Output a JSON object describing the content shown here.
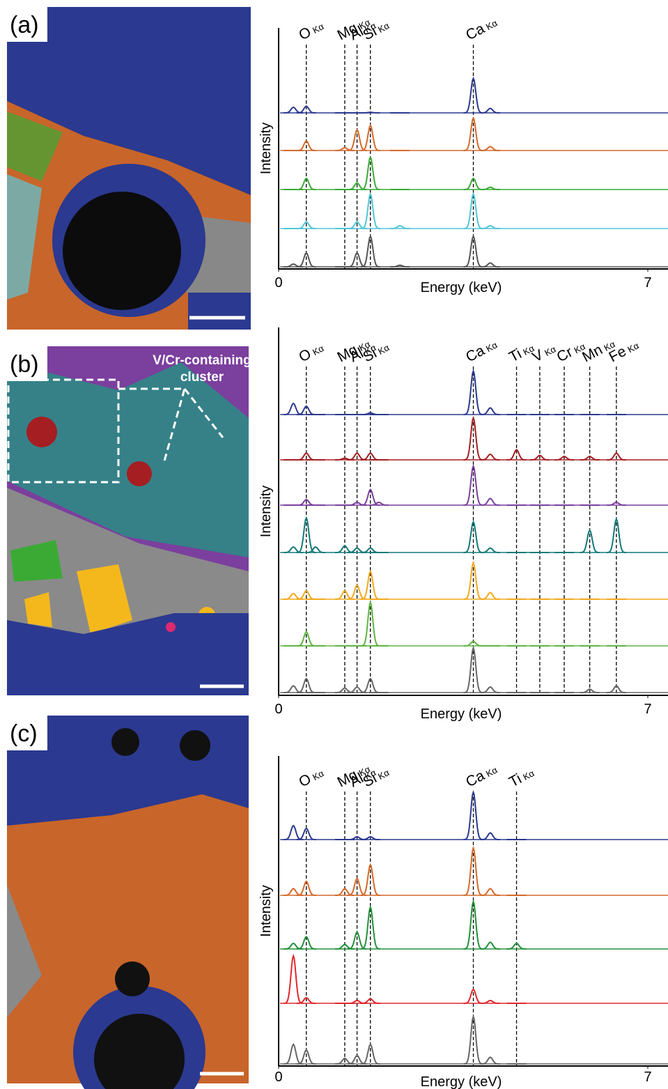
{
  "panel_labels": [
    "(a)",
    "(b)",
    "(c)"
  ],
  "annotation": [
    "V/Cr-containing",
    "cluster"
  ],
  "chart_data": [
    {
      "type": "line",
      "xlabel": "Energy (keV)",
      "ylabel": "Intensity",
      "xlim": [
        0,
        7
      ],
      "xticks": [
        0,
        7
      ],
      "ylim": [
        0,
        100
      ],
      "lines": [
        {
          "element": "O",
          "transition": "Kα",
          "x": 0.525
        },
        {
          "element": "Mg",
          "transition": "Kα",
          "x": 1.254
        },
        {
          "element": "Al",
          "transition": "Kα",
          "x": 1.487
        },
        {
          "element": "Si",
          "transition": "Kα",
          "x": 1.74
        },
        {
          "element": "Ca",
          "transition": "Kα",
          "x": 3.692
        }
      ],
      "x": [
        0.28,
        0.525,
        1.254,
        1.487,
        1.74,
        2.3,
        3.692,
        4.013
      ],
      "series": [
        {
          "color": "#2b3990",
          "values": [
            10,
            12,
            0,
            0,
            1,
            0,
            62,
            8
          ]
        },
        {
          "color": "#d4692a",
          "values": [
            0,
            17,
            5,
            37,
            45,
            0,
            58,
            7
          ]
        },
        {
          "color": "#3aaa35",
          "values": [
            0,
            20,
            0,
            12,
            58,
            0,
            20,
            4
          ]
        },
        {
          "color": "#4fc6d8",
          "values": [
            0,
            12,
            0,
            12,
            62,
            5,
            62,
            5
          ]
        },
        {
          "color": "#555555",
          "values": [
            5,
            25,
            0,
            25,
            55,
            3,
            55,
            7
          ]
        }
      ]
    },
    {
      "type": "line",
      "xlabel": "Energy (keV)",
      "ylabel": "Intensity",
      "xlim": [
        0,
        7
      ],
      "xticks": [
        0,
        7
      ],
      "ylim": [
        0,
        100
      ],
      "lines": [
        {
          "element": "O",
          "transition": "Kα",
          "x": 0.525
        },
        {
          "element": "Mg",
          "transition": "Kα",
          "x": 1.254
        },
        {
          "element": "Al",
          "transition": "Kα",
          "x": 1.487
        },
        {
          "element": "Si",
          "transition": "Kα",
          "x": 1.74
        },
        {
          "element": "Ca",
          "transition": "Kα",
          "x": 3.692
        },
        {
          "element": "Ti",
          "transition": "Kα",
          "x": 4.511
        },
        {
          "element": "V",
          "transition": "Kα",
          "x": 4.952
        },
        {
          "element": "Cr",
          "transition": "Kα",
          "x": 5.415
        },
        {
          "element": "Mn",
          "transition": "Kα",
          "x": 5.899
        },
        {
          "element": "Fe",
          "transition": "Kα",
          "x": 6.404
        }
      ],
      "x": [
        0.28,
        0.525,
        0.7,
        1.254,
        1.487,
        1.74,
        1.9,
        3.692,
        4.013,
        4.511,
        4.952,
        5.415,
        5.899,
        6.404
      ],
      "series": [
        {
          "color": "#2b3990",
          "values": [
            20,
            15,
            0,
            0,
            0,
            3,
            0,
            78,
            12,
            0,
            0,
            0,
            0,
            0
          ]
        },
        {
          "color": "#a51e22",
          "values": [
            0,
            12,
            0,
            3,
            12,
            12,
            0,
            75,
            10,
            18,
            8,
            6,
            6,
            12
          ]
        },
        {
          "color": "#7b3f9e",
          "values": [
            0,
            10,
            0,
            0,
            5,
            28,
            5,
            70,
            12,
            0,
            0,
            0,
            0,
            5
          ]
        },
        {
          "color": "#117a78",
          "values": [
            10,
            62,
            10,
            12,
            8,
            8,
            0,
            55,
            8,
            0,
            0,
            0,
            40,
            60
          ]
        },
        {
          "color": "#f4a81d",
          "values": [
            10,
            15,
            0,
            15,
            25,
            50,
            0,
            65,
            12,
            0,
            0,
            0,
            0,
            0
          ]
        },
        {
          "color": "#5db540",
          "values": [
            0,
            25,
            0,
            0,
            0,
            78,
            0,
            8,
            0,
            0,
            0,
            0,
            0,
            0
          ]
        },
        {
          "color": "#666666",
          "values": [
            12,
            25,
            0,
            8,
            10,
            25,
            0,
            80,
            10,
            0,
            0,
            0,
            6,
            12
          ]
        }
      ]
    },
    {
      "type": "line",
      "xlabel": "Energy (keV)",
      "ylabel": "Intensity",
      "xlim": [
        0,
        7
      ],
      "xticks": [
        0,
        7
      ],
      "ylim": [
        0,
        100
      ],
      "lines": [
        {
          "element": "O",
          "transition": "Kα",
          "x": 0.525
        },
        {
          "element": "Mg",
          "transition": "Kα",
          "x": 1.254
        },
        {
          "element": "Al",
          "transition": "Kα",
          "x": 1.487
        },
        {
          "element": "Si",
          "transition": "Kα",
          "x": 1.74
        },
        {
          "element": "Ca",
          "transition": "Kα",
          "x": 3.692
        },
        {
          "element": "Ti",
          "transition": "Kα",
          "x": 4.511
        }
      ],
      "x": [
        0.28,
        0.525,
        1.254,
        1.487,
        1.74,
        3.692,
        4.013,
        4.511
      ],
      "series": [
        {
          "color": "#2b3990",
          "values": [
            25,
            20,
            0,
            5,
            5,
            85,
            12,
            0
          ]
        },
        {
          "color": "#d4692a",
          "values": [
            12,
            25,
            12,
            30,
            55,
            85,
            12,
            0
          ]
        },
        {
          "color": "#23903a",
          "values": [
            10,
            22,
            8,
            30,
            75,
            85,
            12,
            10
          ]
        },
        {
          "color": "#e0282e",
          "values": [
            85,
            10,
            0,
            5,
            8,
            25,
            5,
            0
          ]
        },
        {
          "color": "#666666",
          "values": [
            35,
            25,
            10,
            15,
            35,
            85,
            12,
            0
          ]
        }
      ]
    }
  ]
}
